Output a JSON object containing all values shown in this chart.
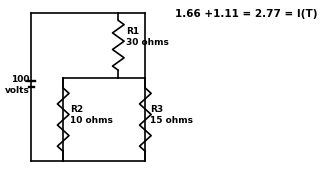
{
  "title_text": "1.66 +1.11 = 2.77 = I(T)",
  "voltage_label": "100\nvolts",
  "r1_label": "R1\n30 ohms",
  "r2_label": "R2\n10 ohms",
  "r3_label": "R3\n15 ohms",
  "bg_color": "#ffffff",
  "line_color": "#000000",
  "text_color": "#000000",
  "font_size": 6.5,
  "title_font_size": 7.5,
  "figsize": [
    3.2,
    1.8
  ],
  "dpi": 100
}
